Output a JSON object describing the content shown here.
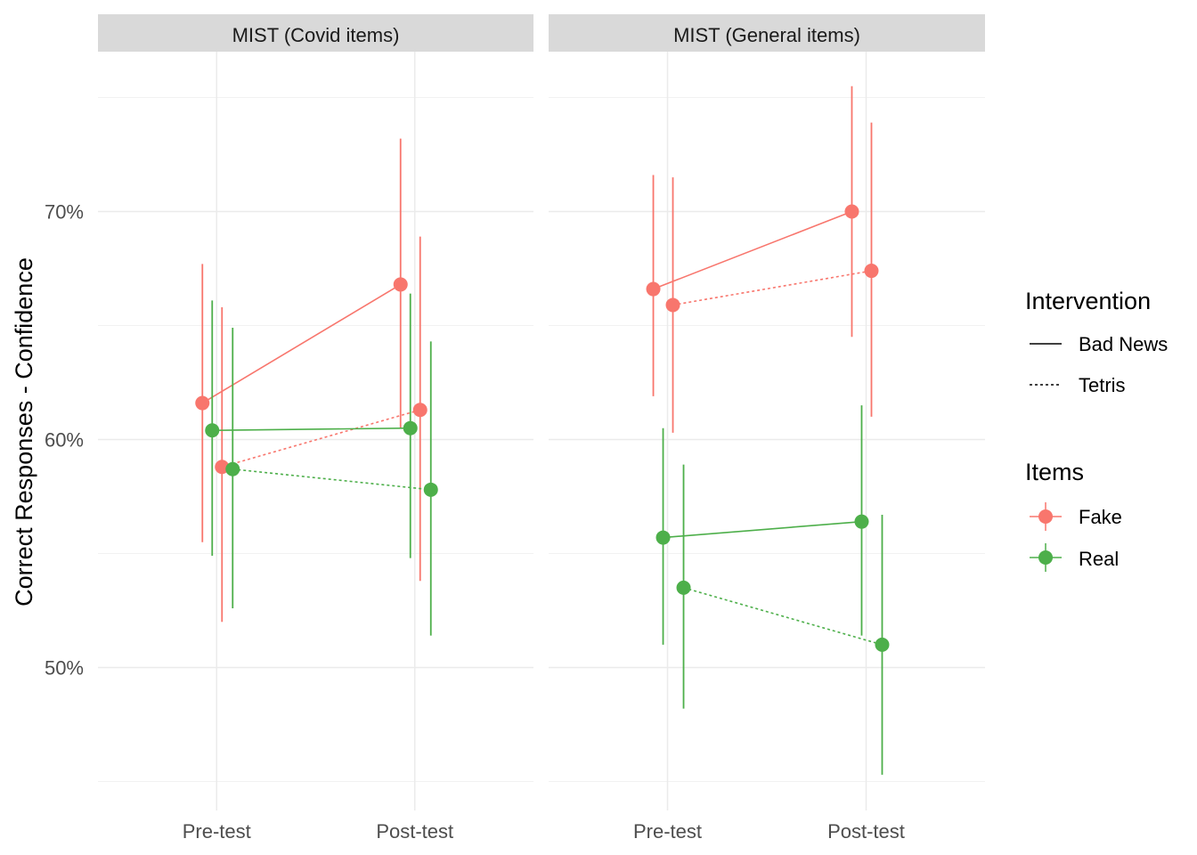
{
  "chart_data": {
    "type": "line",
    "ylabel": "Correct Responses - Confidence",
    "xlabel": "",
    "x": [
      "Pre-test",
      "Post-test"
    ],
    "y_ticks": [
      "50%",
      "60%",
      "70%"
    ],
    "ylim": [
      45,
      77
    ],
    "grid": true,
    "legend_position": "right",
    "colors": {
      "Fake": "#F8766D",
      "Real": "#4DAF4A"
    },
    "legend": {
      "intervention_title": "Intervention",
      "intervention_entries": [
        "Bad News",
        "Tetris"
      ],
      "items_title": "Items",
      "items_entries": [
        "Fake",
        "Real"
      ]
    },
    "panels": [
      {
        "title": "MIST (Covid items)",
        "series": [
          {
            "name": "Fake – Bad News",
            "items": "Fake",
            "intervention": "Bad News",
            "values": [
              61.6,
              66.8
            ],
            "lower": [
              55.5,
              60.5
            ],
            "upper": [
              67.7,
              73.2
            ]
          },
          {
            "name": "Fake – Tetris",
            "items": "Fake",
            "intervention": "Tetris",
            "values": [
              58.8,
              61.3
            ],
            "lower": [
              52.0,
              53.8
            ],
            "upper": [
              65.8,
              68.9
            ]
          },
          {
            "name": "Real – Bad News",
            "items": "Real",
            "intervention": "Bad News",
            "values": [
              60.4,
              60.5
            ],
            "lower": [
              54.9,
              54.8
            ],
            "upper": [
              66.1,
              66.4
            ]
          },
          {
            "name": "Real – Tetris",
            "items": "Real",
            "intervention": "Tetris",
            "values": [
              58.7,
              57.8
            ],
            "lower": [
              52.6,
              51.4
            ],
            "upper": [
              64.9,
              64.3
            ]
          }
        ]
      },
      {
        "title": "MIST (General items)",
        "series": [
          {
            "name": "Fake – Bad News",
            "items": "Fake",
            "intervention": "Bad News",
            "values": [
              66.6,
              70.0
            ],
            "lower": [
              61.9,
              64.5
            ],
            "upper": [
              71.6,
              75.5
            ]
          },
          {
            "name": "Fake – Tetris",
            "items": "Fake",
            "intervention": "Tetris",
            "values": [
              65.9,
              67.4
            ],
            "lower": [
              60.3,
              61.0
            ],
            "upper": [
              71.5,
              73.9
            ]
          },
          {
            "name": "Real – Bad News",
            "items": "Real",
            "intervention": "Bad News",
            "values": [
              55.7,
              56.4
            ],
            "lower": [
              51.0,
              51.4
            ],
            "upper": [
              60.5,
              61.5
            ]
          },
          {
            "name": "Real – Tetris",
            "items": "Real",
            "intervention": "Tetris",
            "values": [
              53.5,
              51.0
            ],
            "lower": [
              48.2,
              45.3
            ],
            "upper": [
              58.9,
              56.7
            ]
          }
        ]
      }
    ]
  }
}
